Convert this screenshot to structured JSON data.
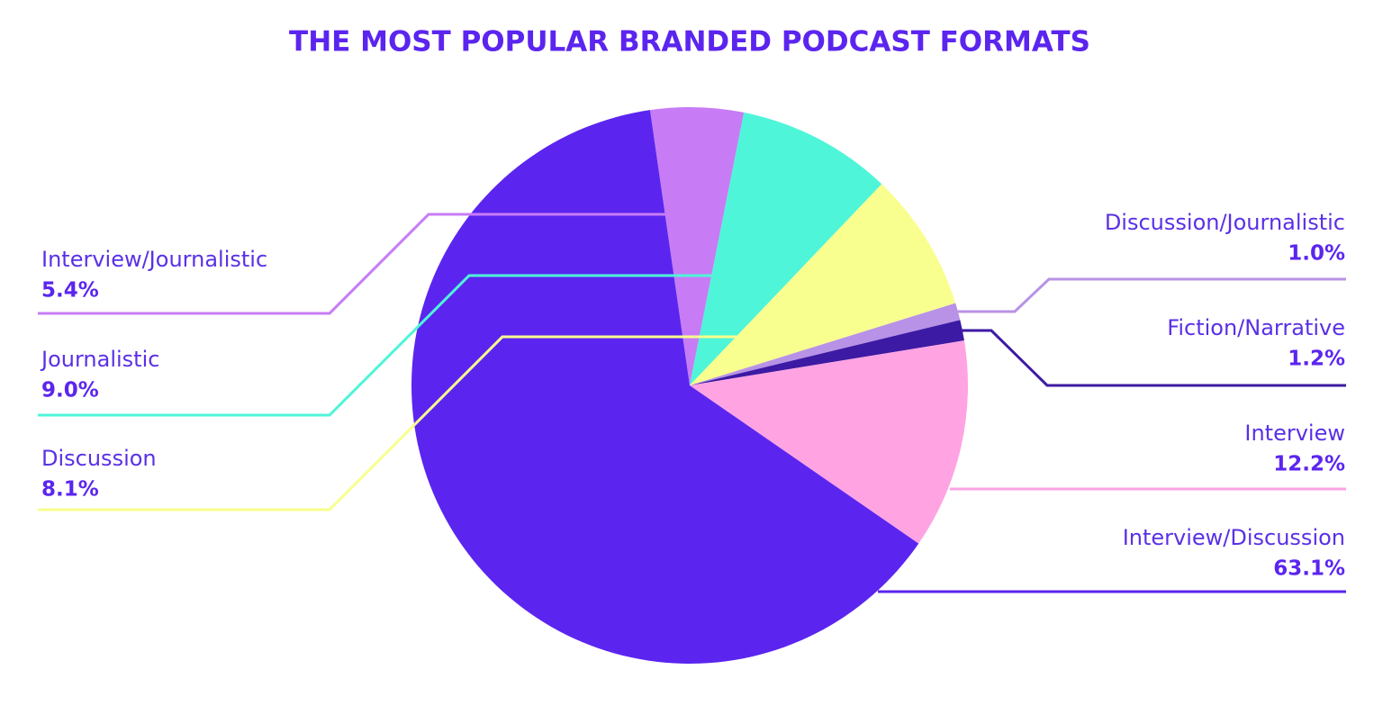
{
  "chart_data": {
    "type": "pie",
    "title": "THE MOST POPULAR BRANDED PODCAST FORMATS",
    "categories": [
      "Interview/Journalistic",
      "Journalistic",
      "Discussion",
      "Discussion/Journalistic",
      "Fiction/Narrative",
      "Interview",
      "Interview/Discussion"
    ],
    "values": [
      5.4,
      9.0,
      8.1,
      1.0,
      1.2,
      12.2,
      63.1
    ],
    "value_labels": [
      "5.4%",
      "9.0%",
      "8.1%",
      "1.0%",
      "1.2%",
      "12.2%",
      "63.1%"
    ],
    "colors": [
      "#c77cf5",
      "#4ff5d8",
      "#f8ff8e",
      "#b892e6",
      "#3d1aa3",
      "#ffa3e3",
      "#5b25ef"
    ]
  }
}
